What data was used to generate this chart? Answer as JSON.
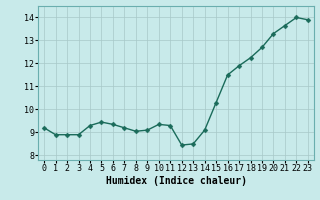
{
  "x": [
    0,
    1,
    2,
    3,
    4,
    5,
    6,
    7,
    8,
    9,
    10,
    11,
    12,
    13,
    14,
    15,
    16,
    17,
    18,
    19,
    20,
    21,
    22,
    23
  ],
  "y": [
    9.2,
    8.9,
    8.9,
    8.9,
    9.3,
    9.45,
    9.35,
    9.2,
    9.05,
    9.1,
    9.35,
    9.3,
    8.45,
    8.5,
    9.1,
    10.3,
    11.5,
    11.9,
    12.25,
    12.7,
    13.3,
    13.65,
    14.0,
    13.9
  ],
  "line_color": "#1a6b5a",
  "marker": "D",
  "marker_size": 2.5,
  "line_width": 1.0,
  "bg_color": "#c8eaea",
  "grid_color": "#a8c8c8",
  "xlabel": "Humidex (Indice chaleur)",
  "xlabel_fontsize": 7,
  "tick_fontsize": 6,
  "ylim": [
    7.8,
    14.5
  ],
  "xlim": [
    -0.5,
    23.5
  ],
  "yticks": [
    8,
    9,
    10,
    11,
    12,
    13,
    14
  ],
  "xticks": [
    0,
    1,
    2,
    3,
    4,
    5,
    6,
    7,
    8,
    9,
    10,
    11,
    12,
    13,
    14,
    15,
    16,
    17,
    18,
    19,
    20,
    21,
    22,
    23
  ]
}
